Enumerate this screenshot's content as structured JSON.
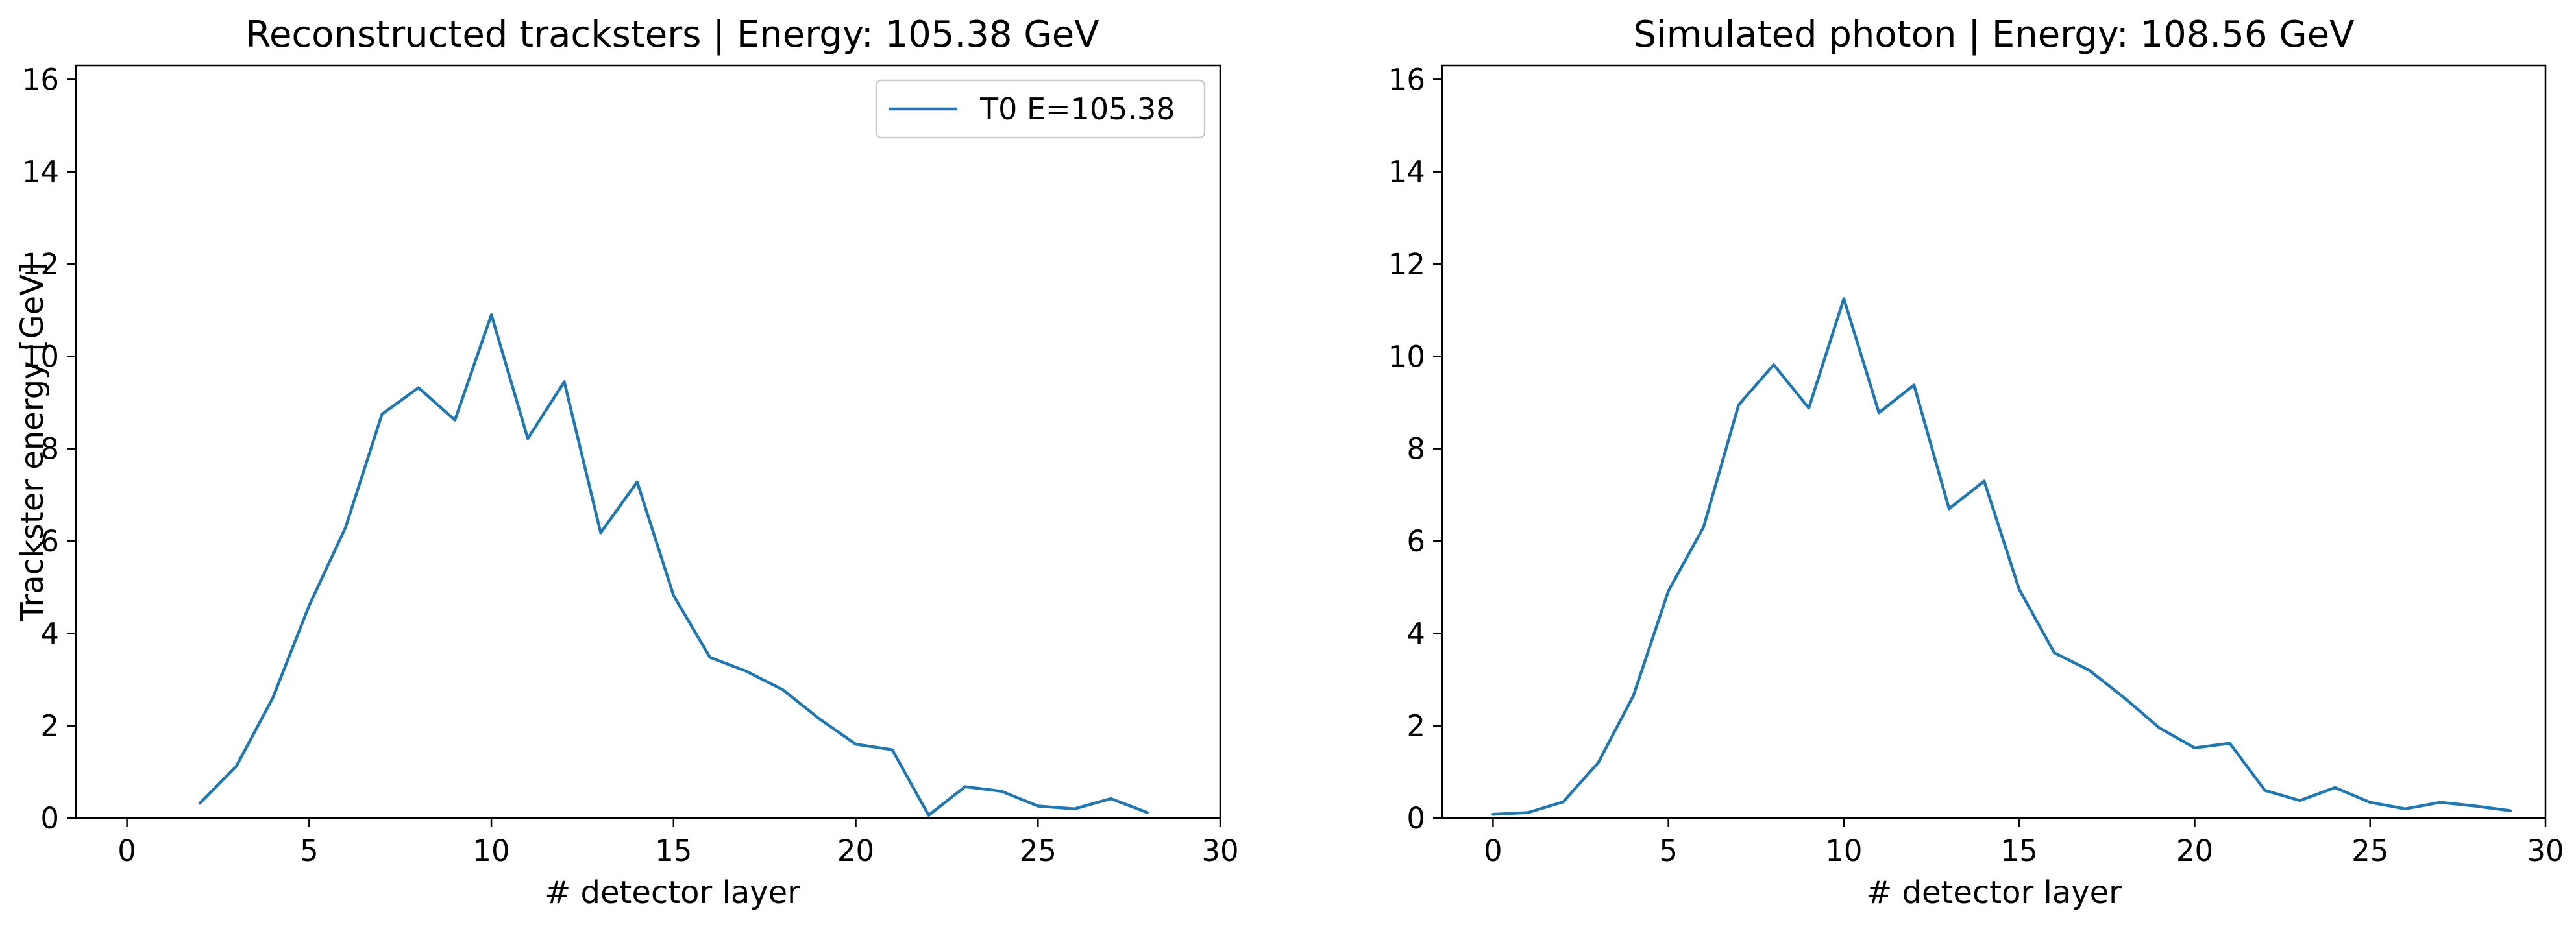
{
  "colors": {
    "series": "#1f77b4"
  },
  "chart_data": [
    {
      "type": "line",
      "title": "Reconstructed tracksters | Energy: 105.38 GeV",
      "xlabel": "# detector layer",
      "ylabel": "Trackster energy [GeV]",
      "xlim": [
        -1.4,
        30
      ],
      "ylim": [
        0,
        16.3
      ],
      "xticks": [
        0,
        5,
        10,
        15,
        20,
        25,
        30
      ],
      "yticks": [
        0,
        2,
        4,
        6,
        8,
        10,
        12,
        14,
        16
      ],
      "grid": false,
      "legend": {
        "placement": "top-right",
        "entries": [
          "T0 E=105.38"
        ]
      },
      "series": [
        {
          "name": "T0 E=105.38",
          "x": [
            2,
            3,
            4,
            5,
            6,
            7,
            8,
            9,
            10,
            11,
            12,
            13,
            14,
            15,
            16,
            17,
            18,
            19,
            20,
            21,
            22,
            23,
            24,
            25,
            26,
            27,
            28
          ],
          "y": [
            0.32,
            1.12,
            2.6,
            4.6,
            6.3,
            8.75,
            9.32,
            8.62,
            10.9,
            8.22,
            9.45,
            6.18,
            7.28,
            4.82,
            3.48,
            3.18,
            2.78,
            2.15,
            1.6,
            1.48,
            0.06,
            0.68,
            0.58,
            0.26,
            0.2,
            0.42,
            0.12
          ]
        }
      ]
    },
    {
      "type": "line",
      "title": "Simulated photon | Energy: 108.56 GeV",
      "xlabel": "# detector layer",
      "ylabel": "",
      "xlim": [
        -1.45,
        30
      ],
      "ylim": [
        0,
        16.3
      ],
      "xticks": [
        0,
        5,
        10,
        15,
        20,
        25,
        30
      ],
      "yticks": [
        0,
        2,
        4,
        6,
        8,
        10,
        12,
        14,
        16
      ],
      "grid": false,
      "series": [
        {
          "x": [
            0,
            1,
            2,
            3,
            4,
            5,
            6,
            7,
            8,
            9,
            10,
            11,
            12,
            13,
            14,
            15,
            16,
            17,
            18,
            19,
            20,
            21,
            22,
            23,
            24,
            25,
            26,
            27,
            28,
            29
          ],
          "y": [
            0.08,
            0.12,
            0.35,
            1.2,
            2.65,
            4.92,
            6.3,
            8.95,
            9.82,
            8.88,
            11.25,
            8.78,
            9.38,
            6.7,
            7.3,
            4.95,
            3.58,
            3.2,
            2.6,
            1.95,
            1.52,
            1.62,
            0.6,
            0.38,
            0.66,
            0.34,
            0.2,
            0.34,
            0.26,
            0.16
          ]
        }
      ]
    }
  ]
}
